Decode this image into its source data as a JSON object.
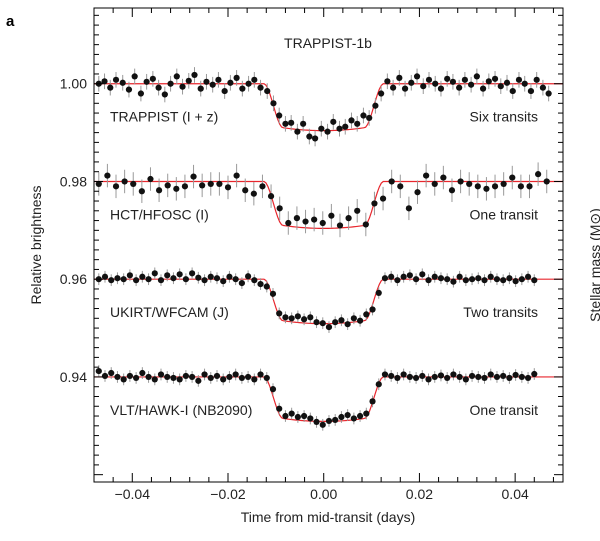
{
  "panel_letter": "a",
  "right_axis_label_fragment": "Stellar mass (M⊙)",
  "chart_data": {
    "type": "scatter",
    "title": "TRAPPIST-1b",
    "xlabel": "Time from mid-transit (days)",
    "ylabel": "Relative brightness",
    "xlim": [
      -0.048,
      0.05
    ],
    "ylim": [
      0.9185,
      1.0155
    ],
    "x_ticks": [
      -0.04,
      -0.02,
      0.0,
      0.02,
      0.04
    ],
    "x_tick_labels": [
      "−0.04",
      "−0.02",
      "0.00",
      "0.02",
      "0.04"
    ],
    "y_ticks": [
      0.94,
      0.96,
      0.98,
      1.0
    ],
    "y_tick_labels": [
      "0.94",
      "0.96",
      "0.98",
      "1.00"
    ],
    "grid": false,
    "model_color": "#e8262d",
    "point_color": "#111111",
    "errorbar_color": "#999999",
    "series": [
      {
        "name": "TRAPPIST (I + z)",
        "annotation": "Six transits",
        "baseline": 1.0,
        "depth": 0.009,
        "err": 0.0016,
        "points": [
          [
            -0.047,
            1.0
          ],
          [
            -0.0458,
            1.0005
          ],
          [
            -0.0446,
            0.9992
          ],
          [
            -0.0434,
            1.0008
          ],
          [
            -0.042,
            1.0002
          ],
          [
            -0.0407,
            0.9988
          ],
          [
            -0.0395,
            1.0015
          ],
          [
            -0.0382,
            0.998
          ],
          [
            -0.037,
            1.0004
          ],
          [
            -0.0357,
            1.001
          ],
          [
            -0.0345,
            0.9992
          ],
          [
            -0.0332,
            0.9978
          ],
          [
            -0.032,
            1.0
          ],
          [
            -0.0307,
            1.0015
          ],
          [
            -0.0295,
            0.9994
          ],
          [
            -0.0282,
            1.0006
          ],
          [
            -0.027,
            1.0018
          ],
          [
            -0.0257,
            0.999
          ],
          [
            -0.0245,
            1.0004
          ],
          [
            -0.0232,
            0.9998
          ],
          [
            -0.022,
            1.0008
          ],
          [
            -0.0207,
            0.9985
          ],
          [
            -0.0195,
            1.0002
          ],
          [
            -0.0182,
            1.0012
          ],
          [
            -0.017,
            0.999
          ],
          [
            -0.0157,
            1.0
          ],
          [
            -0.0145,
            1.0008
          ],
          [
            -0.0132,
            0.9992
          ],
          [
            -0.0118,
            0.9985
          ],
          [
            -0.0105,
            0.996
          ],
          [
            -0.0093,
            0.9935
          ],
          [
            -0.008,
            0.9918
          ],
          [
            -0.0068,
            0.992
          ],
          [
            -0.0055,
            0.9902
          ],
          [
            -0.0043,
            0.9918
          ],
          [
            -0.003,
            0.9892
          ],
          [
            -0.0018,
            0.9888
          ],
          [
            -0.0005,
            0.9908
          ],
          [
            0.0008,
            0.9902
          ],
          [
            0.002,
            0.9922
          ],
          [
            0.0033,
            0.9908
          ],
          [
            0.0045,
            0.9912
          ],
          [
            0.0058,
            0.9925
          ],
          [
            0.007,
            0.9918
          ],
          [
            0.0083,
            0.9935
          ],
          [
            0.0095,
            0.993
          ],
          [
            0.0108,
            0.9955
          ],
          [
            0.012,
            0.998
          ],
          [
            0.0133,
            1.0005
          ],
          [
            0.0145,
            0.9992
          ],
          [
            0.0158,
            1.0012
          ],
          [
            0.017,
            0.999
          ],
          [
            0.0183,
            1.0002
          ],
          [
            0.0195,
            1.0015
          ],
          [
            0.0208,
            0.9995
          ],
          [
            0.022,
            1.0008
          ],
          [
            0.0233,
            1.0
          ],
          [
            0.0245,
            0.999
          ],
          [
            0.0258,
            1.001
          ],
          [
            0.027,
            1.0004
          ],
          [
            0.0283,
            0.9992
          ],
          [
            0.0295,
            1.0008
          ],
          [
            0.0308,
            0.9998
          ],
          [
            0.032,
            1.0015
          ],
          [
            0.0333,
            0.999
          ],
          [
            0.0345,
            1.0005
          ],
          [
            0.0358,
            1.001
          ],
          [
            0.037,
            0.9995
          ],
          [
            0.0383,
            1.0002
          ],
          [
            0.0395,
            0.9985
          ],
          [
            0.0408,
            1.0008
          ],
          [
            0.042,
            1.0
          ],
          [
            0.0433,
            0.9985
          ],
          [
            0.0445,
            1.0008
          ],
          [
            0.0458,
            0.9992
          ],
          [
            0.047,
            0.998
          ]
        ]
      },
      {
        "name": "HCT/HFOSC (I)",
        "annotation": "One transit",
        "baseline": 0.98,
        "depth": 0.009,
        "err": 0.0024,
        "points": [
          [
            -0.047,
            0.9795
          ],
          [
            -0.0452,
            0.9812
          ],
          [
            -0.0434,
            0.979
          ],
          [
            -0.0416,
            0.98
          ],
          [
            -0.0398,
            0.9795
          ],
          [
            -0.038,
            0.978
          ],
          [
            -0.0362,
            0.9805
          ],
          [
            -0.0344,
            0.9782
          ],
          [
            -0.0326,
            0.9792
          ],
          [
            -0.0308,
            0.9785
          ],
          [
            -0.029,
            0.979
          ],
          [
            -0.0272,
            0.981
          ],
          [
            -0.0254,
            0.9792
          ],
          [
            -0.0236,
            0.9795
          ],
          [
            -0.0218,
            0.9795
          ],
          [
            -0.02,
            0.9788
          ],
          [
            -0.0182,
            0.9812
          ],
          [
            -0.0164,
            0.9782
          ],
          [
            -0.0146,
            0.9775
          ],
          [
            -0.0128,
            0.979
          ],
          [
            -0.011,
            0.977
          ],
          [
            -0.0092,
            0.9745
          ],
          [
            -0.0074,
            0.9715
          ],
          [
            -0.0056,
            0.9725
          ],
          [
            -0.0038,
            0.9718
          ],
          [
            -0.002,
            0.9722
          ],
          [
            -0.0002,
            0.9715
          ],
          [
            0.0016,
            0.973
          ],
          [
            0.0034,
            0.971
          ],
          [
            0.0052,
            0.9725
          ],
          [
            0.007,
            0.974
          ],
          [
            0.0088,
            0.9712
          ],
          [
            0.0106,
            0.9755
          ],
          [
            0.0124,
            0.9765
          ],
          [
            0.0142,
            0.98
          ],
          [
            0.016,
            0.979
          ],
          [
            0.0178,
            0.9745
          ],
          [
            0.0196,
            0.9778
          ],
          [
            0.0214,
            0.9812
          ],
          [
            0.0232,
            0.9795
          ],
          [
            0.025,
            0.9808
          ],
          [
            0.0268,
            0.9782
          ],
          [
            0.0286,
            0.98
          ],
          [
            0.0304,
            0.9795
          ],
          [
            0.0322,
            0.979
          ],
          [
            0.034,
            0.9785
          ],
          [
            0.0358,
            0.979
          ],
          [
            0.0376,
            0.9795
          ],
          [
            0.0394,
            0.9808
          ],
          [
            0.0412,
            0.979
          ],
          [
            0.043,
            0.979
          ],
          [
            0.0448,
            0.9815
          ],
          [
            0.0466,
            0.98
          ]
        ]
      },
      {
        "name": "UKIRT/WFCAM (J)",
        "annotation": "Two transits",
        "baseline": 0.96,
        "depth": 0.0085,
        "err": 0.0012,
        "points": [
          [
            -0.047,
            0.96
          ],
          [
            -0.0457,
            0.9605
          ],
          [
            -0.0444,
            0.9598
          ],
          [
            -0.0431,
            0.9602
          ],
          [
            -0.0418,
            0.96
          ],
          [
            -0.0405,
            0.9608
          ],
          [
            -0.0392,
            0.9598
          ],
          [
            -0.0379,
            0.9605
          ],
          [
            -0.0366,
            0.96
          ],
          [
            -0.0353,
            0.9612
          ],
          [
            -0.034,
            0.9598
          ],
          [
            -0.0327,
            0.9608
          ],
          [
            -0.0314,
            0.9602
          ],
          [
            -0.0301,
            0.961
          ],
          [
            -0.0288,
            0.96
          ],
          [
            -0.0275,
            0.9612
          ],
          [
            -0.0262,
            0.9603
          ],
          [
            -0.0249,
            0.9598
          ],
          [
            -0.0236,
            0.9605
          ],
          [
            -0.0223,
            0.9602
          ],
          [
            -0.021,
            0.9596
          ],
          [
            -0.0197,
            0.9605
          ],
          [
            -0.0184,
            0.96
          ],
          [
            -0.0171,
            0.9592
          ],
          [
            -0.0158,
            0.9606
          ],
          [
            -0.0145,
            0.9598
          ],
          [
            -0.0132,
            0.959
          ],
          [
            -0.0119,
            0.9585
          ],
          [
            -0.0106,
            0.957
          ],
          [
            -0.0093,
            0.953
          ],
          [
            -0.008,
            0.9522
          ],
          [
            -0.0067,
            0.952
          ],
          [
            -0.0054,
            0.9524
          ],
          [
            -0.0041,
            0.9518
          ],
          [
            -0.0028,
            0.9522
          ],
          [
            -0.0015,
            0.9512
          ],
          [
            -0.0002,
            0.951
          ],
          [
            0.0011,
            0.9502
          ],
          [
            0.0024,
            0.9512
          ],
          [
            0.0037,
            0.9516
          ],
          [
            0.005,
            0.9508
          ],
          [
            0.0063,
            0.952
          ],
          [
            0.0076,
            0.9515
          ],
          [
            0.0089,
            0.9528
          ],
          [
            0.0102,
            0.9538
          ],
          [
            0.0115,
            0.9572
          ],
          [
            0.0128,
            0.9602
          ],
          [
            0.0141,
            0.9605
          ],
          [
            0.0154,
            0.9598
          ],
          [
            0.0167,
            0.9605
          ],
          [
            0.018,
            0.9608
          ],
          [
            0.0193,
            0.96
          ],
          [
            0.0206,
            0.961
          ],
          [
            0.0219,
            0.9598
          ],
          [
            0.0232,
            0.9605
          ],
          [
            0.0245,
            0.9602
          ],
          [
            0.0258,
            0.96
          ],
          [
            0.0271,
            0.9595
          ],
          [
            0.0284,
            0.9605
          ],
          [
            0.0297,
            0.9598
          ],
          [
            0.031,
            0.96
          ],
          [
            0.0323,
            0.9602
          ],
          [
            0.0336,
            0.9598
          ],
          [
            0.0349,
            0.9605
          ],
          [
            0.0362,
            0.96
          ],
          [
            0.0375,
            0.9598
          ],
          [
            0.0388,
            0.9602
          ],
          [
            0.0401,
            0.9596
          ],
          [
            0.0414,
            0.96
          ],
          [
            0.0427,
            0.9605
          ],
          [
            0.044,
            0.9598
          ]
        ]
      },
      {
        "name": "VLT/HAWK-I (NB2090)",
        "annotation": "One transit",
        "baseline": 0.94,
        "depth": 0.0085,
        "err": 0.0012,
        "points": [
          [
            -0.047,
            0.9412
          ],
          [
            -0.0457,
            0.9402
          ],
          [
            -0.0444,
            0.9408
          ],
          [
            -0.0431,
            0.94
          ],
          [
            -0.0418,
            0.9395
          ],
          [
            -0.0405,
            0.9402
          ],
          [
            -0.0392,
            0.9398
          ],
          [
            -0.0379,
            0.9408
          ],
          [
            -0.0366,
            0.94
          ],
          [
            -0.0353,
            0.9395
          ],
          [
            -0.034,
            0.9405
          ],
          [
            -0.0327,
            0.94
          ],
          [
            -0.0314,
            0.9398
          ],
          [
            -0.0301,
            0.9395
          ],
          [
            -0.0288,
            0.9402
          ],
          [
            -0.0275,
            0.94
          ],
          [
            -0.0262,
            0.9392
          ],
          [
            -0.0249,
            0.9405
          ],
          [
            -0.0236,
            0.9398
          ],
          [
            -0.0223,
            0.9402
          ],
          [
            -0.021,
            0.9395
          ],
          [
            -0.0197,
            0.94
          ],
          [
            -0.0184,
            0.9405
          ],
          [
            -0.0171,
            0.9398
          ],
          [
            -0.0158,
            0.94
          ],
          [
            -0.0145,
            0.9395
          ],
          [
            -0.0132,
            0.9405
          ],
          [
            -0.0119,
            0.9398
          ],
          [
            -0.0106,
            0.9375
          ],
          [
            -0.0093,
            0.9335
          ],
          [
            -0.008,
            0.932
          ],
          [
            -0.0067,
            0.9325
          ],
          [
            -0.0054,
            0.9318
          ],
          [
            -0.0041,
            0.932
          ],
          [
            -0.0028,
            0.9315
          ],
          [
            -0.0015,
            0.9308
          ],
          [
            -0.0002,
            0.9302
          ],
          [
            0.0011,
            0.931
          ],
          [
            0.0024,
            0.9312
          ],
          [
            0.0037,
            0.9318
          ],
          [
            0.005,
            0.9322
          ],
          [
            0.0063,
            0.9315
          ],
          [
            0.0076,
            0.932
          ],
          [
            0.0089,
            0.9325
          ],
          [
            0.0102,
            0.935
          ],
          [
            0.0115,
            0.9385
          ],
          [
            0.0128,
            0.9405
          ],
          [
            0.0141,
            0.9402
          ],
          [
            0.0154,
            0.9398
          ],
          [
            0.0167,
            0.9405
          ],
          [
            0.018,
            0.94
          ],
          [
            0.0193,
            0.9398
          ],
          [
            0.0206,
            0.9402
          ],
          [
            0.0219,
            0.9395
          ],
          [
            0.0232,
            0.94
          ],
          [
            0.0245,
            0.9403
          ],
          [
            0.0258,
            0.9398
          ],
          [
            0.0271,
            0.9405
          ],
          [
            0.0284,
            0.94
          ],
          [
            0.0297,
            0.9395
          ],
          [
            0.031,
            0.9402
          ],
          [
            0.0323,
            0.94
          ],
          [
            0.0336,
            0.9398
          ],
          [
            0.0349,
            0.9405
          ],
          [
            0.0362,
            0.94
          ],
          [
            0.0375,
            0.9402
          ],
          [
            0.0388,
            0.9398
          ],
          [
            0.0401,
            0.9404
          ],
          [
            0.0414,
            0.94
          ],
          [
            0.0427,
            0.9398
          ],
          [
            0.044,
            0.9406
          ]
        ]
      }
    ]
  }
}
